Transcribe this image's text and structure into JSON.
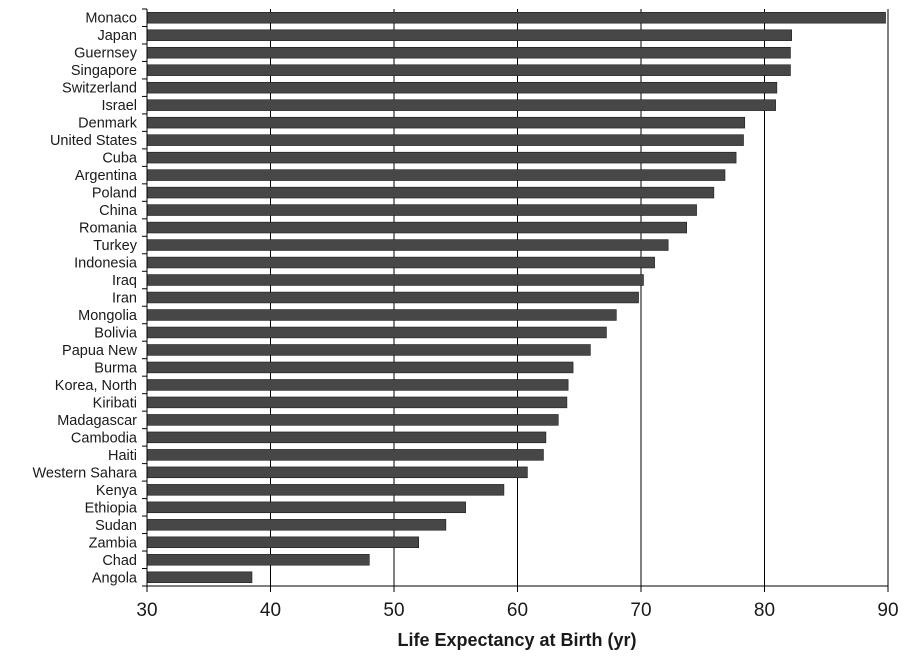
{
  "chart_data": {
    "type": "bar",
    "orientation": "horizontal",
    "categories": [
      "Monaco",
      "Japan",
      "Guernsey",
      "Singapore",
      "Switzerland",
      "Israel",
      "Denmark",
      "United States",
      "Cuba",
      "Argentina",
      "Poland",
      "China",
      "Romania",
      "Turkey",
      "Indonesia",
      "Iraq",
      "Iran",
      "Mongolia",
      "Bolivia",
      "Papua New",
      "Burma",
      "Korea, North",
      "Kiribati",
      "Madagascar",
      "Cambodia",
      "Haiti",
      "Western Sahara",
      "Kenya",
      "Ethiopia",
      "Sudan",
      "Zambia",
      "Chad",
      "Angola"
    ],
    "values": [
      89.8,
      82.2,
      82.1,
      82.1,
      81.0,
      80.9,
      78.4,
      78.3,
      77.7,
      76.8,
      75.9,
      74.5,
      73.7,
      72.2,
      71.1,
      70.2,
      69.8,
      68.0,
      67.2,
      65.9,
      64.5,
      64.1,
      64.0,
      63.3,
      62.3,
      62.1,
      60.8,
      58.9,
      55.8,
      54.2,
      52.0,
      48.0,
      38.5
    ],
    "xlabel": "Life Expectancy at Birth (yr)",
    "ylabel": "",
    "xlim": [
      30,
      90
    ],
    "xticks": [
      30,
      40,
      50,
      60,
      70,
      80,
      90
    ],
    "xtick_labels": [
      "30",
      "40",
      "50",
      "60",
      "70",
      "80",
      "90"
    ],
    "grid": "vertical",
    "legend": "none",
    "colors": {
      "bar_fill": "#474747",
      "bar_stroke": "#1a1a1a",
      "gridline": "#000000",
      "axis": "#000000",
      "background": "#ffffff"
    }
  }
}
